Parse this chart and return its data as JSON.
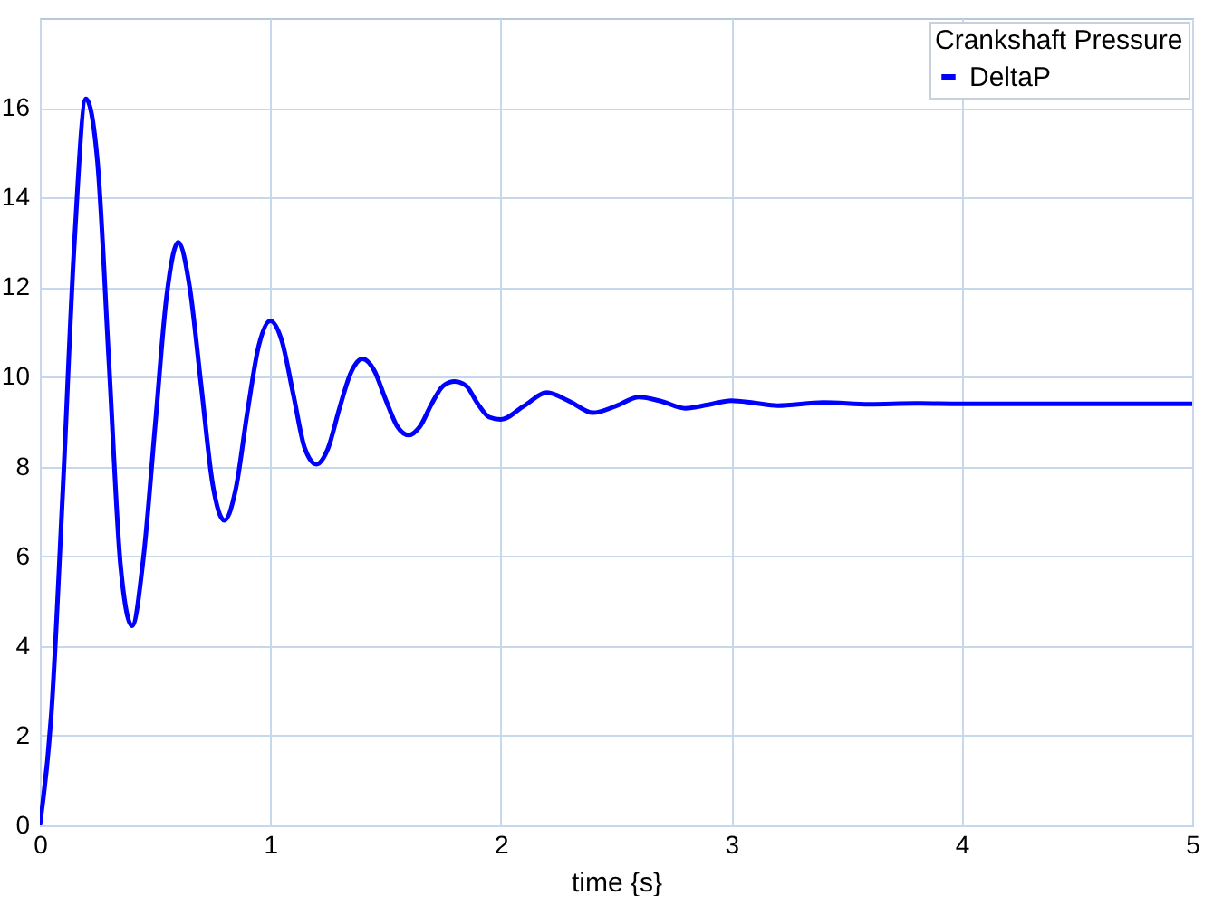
{
  "chart_data": {
    "type": "line",
    "xlabel": "time {s}",
    "legend_title": "Crankshaft Pressure",
    "legend": "top right",
    "grid": true,
    "line_style": "solid",
    "xlim": [
      0,
      5
    ],
    "xticks": [
      0,
      1,
      2,
      3,
      4,
      5
    ],
    "ylim": [
      0,
      18
    ],
    "yticks": [
      0,
      2,
      4,
      6,
      8,
      10,
      12,
      14,
      16
    ],
    "x": [
      0,
      0.05,
      0.1,
      0.15,
      0.2,
      0.25,
      0.3,
      0.35,
      0.4,
      0.45,
      0.5,
      0.55,
      0.6,
      0.65,
      0.7,
      0.75,
      0.8,
      0.85,
      0.9,
      0.95,
      1.0,
      1.05,
      1.1,
      1.15,
      1.2,
      1.25,
      1.3,
      1.35,
      1.4,
      1.45,
      1.5,
      1.55,
      1.6,
      1.65,
      1.7,
      1.75,
      1.8,
      1.85,
      1.9,
      1.95,
      2.0,
      2.1,
      2.2,
      2.3,
      2.4,
      2.5,
      2.6,
      2.7,
      2.8,
      2.9,
      3.0,
      3.1,
      3.2,
      3.4,
      3.6,
      3.8,
      4.0,
      4.5,
      5.0
    ],
    "series": [
      {
        "name": "DeltaP",
        "color": "#0000ff",
        "values": [
          0,
          2.5,
          7.5,
          13.0,
          16.2,
          14.8,
          10.3,
          5.8,
          4.45,
          6.0,
          8.9,
          11.8,
          13.0,
          12.0,
          9.8,
          7.6,
          6.8,
          7.5,
          9.2,
          10.7,
          11.25,
          10.8,
          9.6,
          8.4,
          8.05,
          8.4,
          9.3,
          10.1,
          10.4,
          10.15,
          9.5,
          8.9,
          8.7,
          8.9,
          9.4,
          9.8,
          9.9,
          9.8,
          9.4,
          9.1,
          9.05,
          9.35,
          9.65,
          9.45,
          9.2,
          9.35,
          9.55,
          9.45,
          9.3,
          9.38,
          9.47,
          9.42,
          9.36,
          9.43,
          9.39,
          9.41,
          9.4,
          9.4,
          9.4
        ]
      }
    ]
  }
}
